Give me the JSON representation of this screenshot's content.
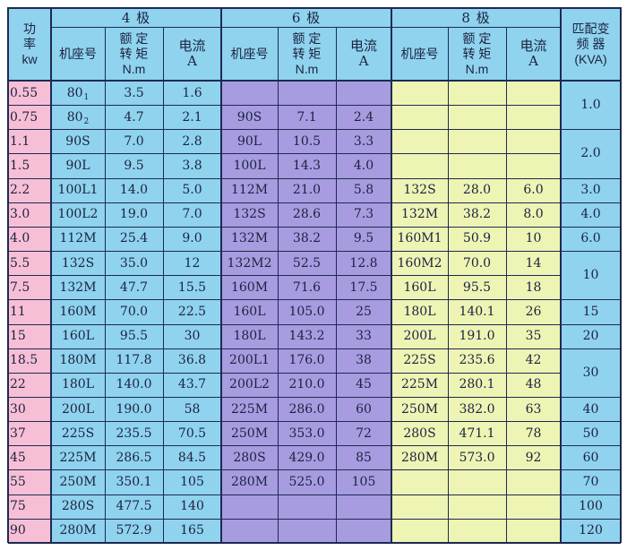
{
  "header": {
    "power": [
      "功",
      "率",
      "kw"
    ],
    "groups": [
      "4 极",
      "6 极",
      "8 极"
    ],
    "inverter": [
      "匹配变",
      "频 器",
      "(KVA)"
    ],
    "sub_columns": {
      "frame": "机座号",
      "torque": [
        "额 定",
        "转 矩",
        "N.m"
      ],
      "current": [
        "电流",
        "A"
      ]
    }
  },
  "power_values": [
    "0.55",
    "0.75",
    "1.1",
    "1.5",
    "2.2",
    "3.0",
    "4.0",
    "5.5",
    "7.5",
    "11",
    "15",
    "18.5",
    "22",
    "30",
    "37",
    "45",
    "55",
    "75",
    "90"
  ],
  "pole4": [
    {
      "frame": "80",
      "sub": "1",
      "torque": "3.5",
      "current": "1.6"
    },
    {
      "frame": "80",
      "sub": "2",
      "torque": "4.7",
      "current": "2.1"
    },
    {
      "frame": "90S",
      "torque": "7.0",
      "current": "2.8"
    },
    {
      "frame": "90L",
      "torque": "9.5",
      "current": "3.8"
    },
    {
      "frame": "100L1",
      "torque": "14.0",
      "current": "5.0"
    },
    {
      "frame": "100L2",
      "torque": "19.0",
      "current": "7.0"
    },
    {
      "frame": "112M",
      "torque": "25.4",
      "current": "9.0"
    },
    {
      "frame": "132S",
      "torque": "35.0",
      "current": "12"
    },
    {
      "frame": "132M",
      "torque": "47.7",
      "current": "15.5"
    },
    {
      "frame": "160M",
      "torque": "70.0",
      "current": "22.5"
    },
    {
      "frame": "160L",
      "torque": "95.5",
      "current": "30"
    },
    {
      "frame": "180M",
      "torque": "117.8",
      "current": "36.8"
    },
    {
      "frame": "180L",
      "torque": "140.0",
      "current": "43.7"
    },
    {
      "frame": "200L",
      "torque": "190.0",
      "current": "58"
    },
    {
      "frame": "225S",
      "torque": "235.5",
      "current": "70.5"
    },
    {
      "frame": "225M",
      "torque": "286.5",
      "current": "84.5"
    },
    {
      "frame": "250M",
      "torque": "350.1",
      "current": "105"
    },
    {
      "frame": "280S",
      "torque": "477.5",
      "current": "140"
    },
    {
      "frame": "280M",
      "torque": "572.9",
      "current": "165"
    }
  ],
  "pole6": [
    {
      "frame": "90S",
      "torque": "7.1",
      "current": "2.4"
    },
    {
      "frame": "90L",
      "torque": "10.5",
      "current": "3.3"
    },
    {
      "frame": "100L",
      "torque": "14.3",
      "current": "4.0"
    },
    {
      "frame": "112M",
      "torque": "21.0",
      "current": "5.8"
    },
    {
      "frame": "132S",
      "torque": "28.6",
      "current": "7.3"
    },
    {
      "frame": "132M",
      "torque": "38.2",
      "current": "9.5"
    },
    {
      "frame": "132M2",
      "torque": "52.5",
      "current": "12.8"
    },
    {
      "frame": "160M",
      "torque": "71.6",
      "current": "17.5"
    },
    {
      "frame": "160L",
      "torque": "105.0",
      "current": "25"
    },
    {
      "frame": "180L",
      "torque": "143.2",
      "current": "33"
    },
    {
      "frame": "200L1",
      "torque": "176.0",
      "current": "38"
    },
    {
      "frame": "200L2",
      "torque": "210.0",
      "current": "45"
    },
    {
      "frame": "225M",
      "torque": "286.0",
      "current": "60"
    },
    {
      "frame": "250M",
      "torque": "353.0",
      "current": "72"
    },
    {
      "frame": "280S",
      "torque": "429.0",
      "current": "85"
    },
    {
      "frame": "280M",
      "torque": "525.0",
      "current": "105"
    }
  ],
  "pole8": [
    {
      "frame": "132S",
      "torque": "28.0",
      "current": "6.0"
    },
    {
      "frame": "132M",
      "torque": "38.2",
      "current": "8.0"
    },
    {
      "frame": "160M1",
      "torque": "50.9",
      "current": "10"
    },
    {
      "frame": "160M2",
      "torque": "70.0",
      "current": "14"
    },
    {
      "frame": "160L",
      "torque": "95.5",
      "current": "18"
    },
    {
      "frame": "180L",
      "torque": "140.1",
      "current": "26"
    },
    {
      "frame": "200L",
      "torque": "191.0",
      "current": "35"
    },
    {
      "frame": "225S",
      "torque": "235.6",
      "current": "42"
    },
    {
      "frame": "225M",
      "torque": "280.1",
      "current": "48"
    },
    {
      "frame": "250M",
      "torque": "382.0",
      "current": "63"
    },
    {
      "frame": "280S",
      "torque": "471.1",
      "current": "78"
    },
    {
      "frame": "280M",
      "torque": "573.0",
      "current": "92"
    }
  ],
  "inverter_values": [
    "1.0",
    "2.0",
    "3.0",
    "4.0",
    "6.0",
    "10",
    "15",
    "20",
    "30",
    "40",
    "50",
    "60",
    "70",
    "100",
    "120"
  ],
  "colors": {
    "power_col": "#f7bfd6",
    "pole4": "#8fd3ee",
    "pole6": "#a79ce0",
    "pole8": "#eef4b4",
    "inverter": "#8fd3ee",
    "header": "#8fd3ee",
    "lines": "#1d2a52"
  }
}
